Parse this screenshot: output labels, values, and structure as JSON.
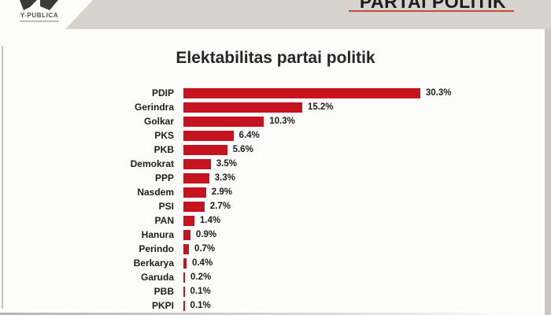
{
  "header": {
    "slide_title": "PARTAI POLITIK",
    "logo_text": "Y-PUBLICA",
    "banner_color": "#d6d3cc",
    "underline_color": "#c0281f"
  },
  "chart_data": {
    "type": "bar",
    "orientation": "horizontal",
    "title": "Elektabilitas partai politik",
    "unit": "%",
    "xlim": [
      0,
      33
    ],
    "grid": false,
    "legend": false,
    "bar_color": "#c5131f",
    "categories": [
      "PDIP",
      "Gerindra",
      "Golkar",
      "PKS",
      "PKB",
      "Demokrat",
      "PPP",
      "Nasdem",
      "PSI",
      "PAN",
      "Hanura",
      "Perindo",
      "Berkarya",
      "Garuda",
      "PBB",
      "PKPI"
    ],
    "values": [
      30.3,
      15.2,
      10.3,
      6.4,
      5.6,
      3.5,
      3.3,
      2.9,
      2.7,
      1.4,
      0.9,
      0.7,
      0.4,
      0.2,
      0.1,
      0.1
    ],
    "value_labels": [
      "30.3%",
      "15.2%",
      "10.3%",
      "6.4%",
      "5.6%",
      "3.5%",
      "3.3%",
      "2.9%",
      "2.7%",
      "1.4%",
      "0.9%",
      "0.7%",
      "0.4%",
      "0.2%",
      "0.1%",
      "0.1%"
    ]
  }
}
